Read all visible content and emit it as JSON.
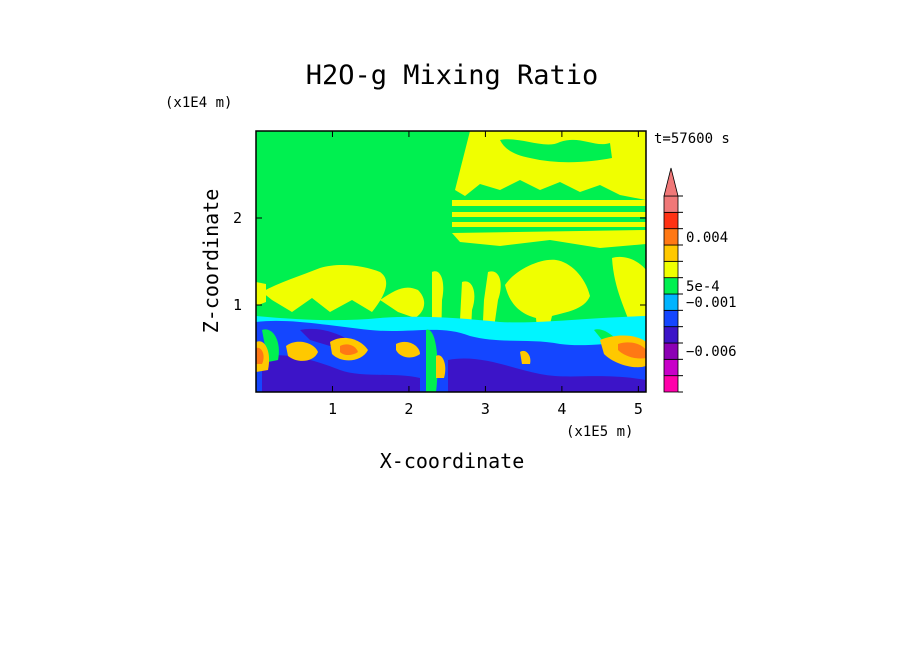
{
  "chart_data": {
    "type": "heatmap",
    "title": "H2O-g Mixing Ratio",
    "xlabel": "X-coordinate",
    "ylabel": "Z-coordinate",
    "x_unit": "(x1E5 m)",
    "y_unit": "(x1E4 m)",
    "time_label": "t=57600 s",
    "xlim": [
      0,
      5.1
    ],
    "ylim": [
      0,
      3.0
    ],
    "x_ticks": [
      1,
      2,
      3,
      4,
      5
    ],
    "y_ticks": [
      1,
      2
    ],
    "colorbar": {
      "extend": "max",
      "labels": [
        {
          "text": "0.004",
          "value": 0.004
        },
        {
          "text": "5e-4",
          "value": 0.0005
        },
        {
          "text": "−0.001",
          "value": -0.001
        },
        {
          "text": "−0.006",
          "value": -0.006
        }
      ],
      "levels": [
        {
          "color": "#ff00aa"
        },
        {
          "color": "#c800c8"
        },
        {
          "color": "#8c00b4"
        },
        {
          "color": "#3c14c8"
        },
        {
          "color": "#1446ff"
        },
        {
          "color": "#00b4ff"
        },
        {
          "color": "#00f050"
        },
        {
          "color": "#f0ff00"
        },
        {
          "color": "#ffc800"
        },
        {
          "color": "#ff7814"
        },
        {
          "color": "#ff3214"
        },
        {
          "color": "#f07878"
        }
      ]
    },
    "field_description": "Upper domain mostly near-zero anomaly (green) with positive (yellow) plumes on the right; lower boundary layer negative (blue) with scattered strong positive (orange/red) cells."
  }
}
